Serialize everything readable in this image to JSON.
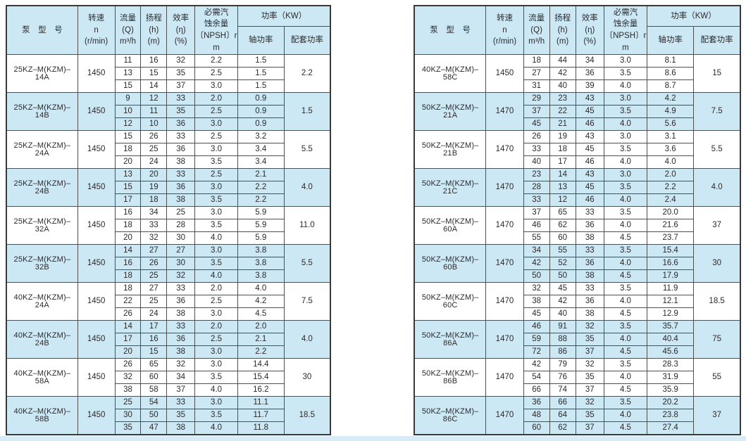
{
  "colors": {
    "cell_blue": "#cde8f5",
    "inner_border": "#4f4f4f",
    "outer_border": "#3a3a3a",
    "bottom_strip": "#d8ecf7",
    "text": "#2a2a2a"
  },
  "header": {
    "model": "泵　型　号",
    "speed": "转速\nn\n(r/min)",
    "flow": "流量\n(Q)\nm³/h",
    "head": "扬程\n(h)\n(m)",
    "efficiency": "效率\n(η)\n(%)",
    "npsh": "必需汽\n蚀余量\n〔NPSH〕r\nm",
    "power": "功率（KW）",
    "shaft": "轴功率",
    "matched": "配套功率"
  },
  "tables": [
    {
      "name": "left",
      "groups": [
        {
          "model": "25KZ–M(KZM)–14A",
          "speed": "1450",
          "matched": "2.2",
          "rows": [
            [
              "11",
              "16",
              "32",
              "2.2",
              "1.5"
            ],
            [
              "13",
              "15",
              "35",
              "2.5",
              "1.5"
            ],
            [
              "15",
              "14",
              "37",
              "3.0",
              "1.5"
            ]
          ]
        },
        {
          "model": "25KZ–M(KZM)–14B",
          "speed": "1450",
          "matched": "1.5",
          "rows": [
            [
              "9",
              "12",
              "33",
              "2.0",
              "0.9"
            ],
            [
              "10",
              "11",
              "35",
              "2.5",
              "0.9"
            ],
            [
              "12",
              "10",
              "36",
              "3.0",
              "0.9"
            ]
          ]
        },
        {
          "model": "25KZ–M(KZM)–24A",
          "speed": "1450",
          "matched": "5.5",
          "rows": [
            [
              "15",
              "26",
              "33",
              "2.5",
              "3.2"
            ],
            [
              "18",
              "25",
              "36",
              "3.0",
              "3.4"
            ],
            [
              "20",
              "24",
              "38",
              "3.5",
              "3.4"
            ]
          ]
        },
        {
          "model": "25KZ–M(KZM)–24B",
          "speed": "1450",
          "matched": "4.0",
          "rows": [
            [
              "13",
              "20",
              "33",
              "2.5",
              "2.1"
            ],
            [
              "15",
              "19",
              "36",
              "3.0",
              "2.2"
            ],
            [
              "17",
              "18",
              "38",
              "3.5",
              "2.2"
            ]
          ]
        },
        {
          "model": "25KZ–M(KZM)–32A",
          "speed": "1450",
          "matched": "11.0",
          "rows": [
            [
              "16",
              "34",
              "25",
              "3.0",
              "5.9"
            ],
            [
              "18",
              "33",
              "28",
              "3.5",
              "5.9"
            ],
            [
              "20",
              "32",
              "30",
              "4.0",
              "5.9"
            ]
          ]
        },
        {
          "model": "25KZ–M(KZM)–32B",
          "speed": "1450",
          "matched": "5.5",
          "rows": [
            [
              "14",
              "27",
              "27",
              "3.0",
              "3.8"
            ],
            [
              "16",
              "26",
              "30",
              "3.5",
              "3.8"
            ],
            [
              "18",
              "25",
              "32",
              "4.0",
              "3.8"
            ]
          ]
        },
        {
          "model": "40KZ–M(KZM)–24A",
          "speed": "1450",
          "matched": "7.5",
          "rows": [
            [
              "18",
              "27",
              "33",
              "2.0",
              "4.0"
            ],
            [
              "22",
              "25",
              "36",
              "2.5",
              "4.2"
            ],
            [
              "26",
              "24",
              "38",
              "3.0",
              "4.5"
            ]
          ]
        },
        {
          "model": "40KZ–M(KZM)–24B",
          "speed": "1450",
          "matched": "4.0",
          "rows": [
            [
              "14",
              "17",
              "33",
              "2.0",
              "2.0"
            ],
            [
              "17",
              "16",
              "36",
              "2.5",
              "2.1"
            ],
            [
              "20",
              "15",
              "38",
              "3.0",
              "2.2"
            ]
          ]
        },
        {
          "model": "40KZ–M(KZM)–58A",
          "speed": "1450",
          "matched": "30",
          "rows": [
            [
              "26",
              "65",
              "32",
              "3.0",
              "14.4"
            ],
            [
              "32",
              "60",
              "34",
              "3.5",
              "15.4"
            ],
            [
              "38",
              "58",
              "37",
              "4.0",
              "16.2"
            ]
          ]
        },
        {
          "model": "40KZ–M(KZM)–58B",
          "speed": "1450",
          "matched": "18.5",
          "rows": [
            [
              "25",
              "54",
              "33",
              "3.0",
              "11.1"
            ],
            [
              "30",
              "50",
              "35",
              "3.5",
              "11.7"
            ],
            [
              "35",
              "47",
              "38",
              "4.0",
              "11.8"
            ]
          ]
        }
      ]
    },
    {
      "name": "right",
      "groups": [
        {
          "model": "40KZ–M(KZM)–58C",
          "speed": "1450",
          "matched": "15",
          "rows": [
            [
              "18",
              "44",
              "34",
              "3.0",
              "8.1"
            ],
            [
              "27",
              "42",
              "36",
              "3.5",
              "8.6"
            ],
            [
              "31",
              "40",
              "39",
              "4.0",
              "8.7"
            ]
          ]
        },
        {
          "model": "50KZ–M(KZM)–21A",
          "speed": "1470",
          "matched": "7.5",
          "rows": [
            [
              "29",
              "23",
              "43",
              "3.0",
              "4.2"
            ],
            [
              "37",
              "22",
              "45",
              "3.5",
              "4.9"
            ],
            [
              "45",
              "21",
              "46",
              "4.0",
              "5.6"
            ]
          ]
        },
        {
          "model": "50KZ–M(KZM)–21B",
          "speed": "1470",
          "matched": "5.5",
          "rows": [
            [
              "26",
              "19",
              "43",
              "3.0",
              "3.1"
            ],
            [
              "33",
              "18",
              "45",
              "3.5",
              "3.6"
            ],
            [
              "40",
              "17",
              "46",
              "4.0",
              "4.0"
            ]
          ]
        },
        {
          "model": "50KZ–M(KZM)–21C",
          "speed": "1470",
          "matched": "4.0",
          "rows": [
            [
              "23",
              "14",
              "43",
              "3.0",
              "2.0"
            ],
            [
              "28",
              "13",
              "45",
              "3.5",
              "2.2"
            ],
            [
              "33",
              "12",
              "46",
              "4.0",
              "2.4"
            ]
          ]
        },
        {
          "model": "50KZ–M(KZM)–60A",
          "speed": "1470",
          "matched": "37",
          "rows": [
            [
              "37",
              "65",
              "33",
              "3.5",
              "20.0"
            ],
            [
              "46",
              "62",
              "36",
              "4.0",
              "21.6"
            ],
            [
              "55",
              "60",
              "38",
              "4.5",
              "23.7"
            ]
          ]
        },
        {
          "model": "50KZ–M(KZM)–60B",
          "speed": "1470",
          "matched": "30",
          "rows": [
            [
              "34",
              "55",
              "33",
              "3.5",
              "15.4"
            ],
            [
              "42",
              "52",
              "36",
              "4.0",
              "16.6"
            ],
            [
              "50",
              "50",
              "38",
              "4.5",
              "17.9"
            ]
          ]
        },
        {
          "model": "50KZ–M(KZM)–60C",
          "speed": "1470",
          "matched": "18.5",
          "rows": [
            [
              "32",
              "45",
              "33",
              "3.5",
              "11.9"
            ],
            [
              "38",
              "42",
              "36",
              "4.0",
              "12.1"
            ],
            [
              "45",
              "40",
              "38",
              "4.5",
              "12.9"
            ]
          ]
        },
        {
          "model": "50KZ–M(KZM)–86A",
          "speed": "1470",
          "matched": "75",
          "rows": [
            [
              "46",
              "91",
              "32",
              "3.5",
              "35.7"
            ],
            [
              "59",
              "88",
              "35",
              "4.0",
              "40.4"
            ],
            [
              "72",
              "86",
              "37",
              "4.5",
              "45.6"
            ]
          ]
        },
        {
          "model": "50KZ–M(KZM)–86B",
          "speed": "1470",
          "matched": "55",
          "rows": [
            [
              "42",
              "79",
              "32",
              "3.5",
              "28.3"
            ],
            [
              "54",
              "76",
              "35",
              "4.0",
              "31.9"
            ],
            [
              "66",
              "74",
              "37",
              "4.5",
              "35.9"
            ]
          ]
        },
        {
          "model": "50KZ–M(KZM)–86C",
          "speed": "1470",
          "matched": "37",
          "rows": [
            [
              "36",
              "66",
              "32",
              "3.5",
              "20.2"
            ],
            [
              "48",
              "64",
              "35",
              "4.0",
              "23.8"
            ],
            [
              "60",
              "62",
              "37",
              "4.5",
              "27.4"
            ]
          ]
        }
      ]
    }
  ]
}
